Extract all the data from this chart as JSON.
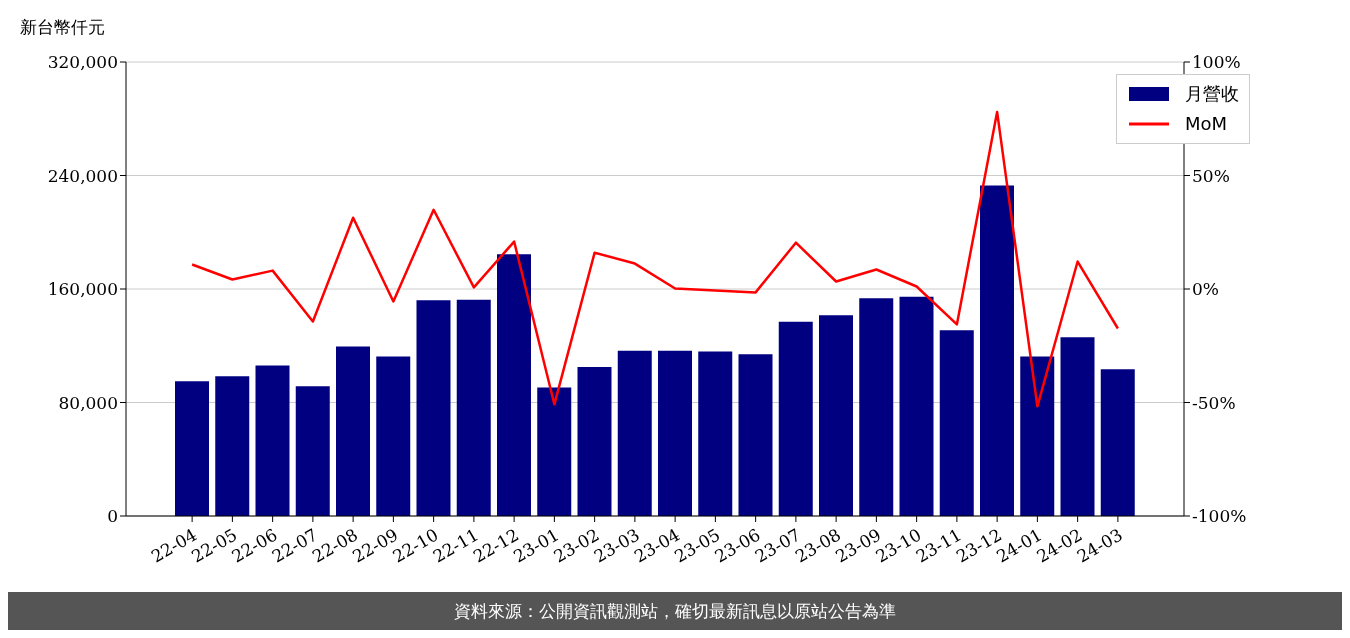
{
  "chart_data": {
    "type": "bar",
    "ylabel": "新台幣仟元",
    "categories": [
      "22-04",
      "22-05",
      "22-06",
      "22-07",
      "22-08",
      "22-09",
      "22-10",
      "22-11",
      "22-12",
      "23-01",
      "23-02",
      "23-03",
      "23-04",
      "23-05",
      "23-06",
      "23-07",
      "23-08",
      "23-09",
      "23-10",
      "23-11",
      "23-12",
      "24-01",
      "24-02",
      "24-03"
    ],
    "series": [
      {
        "name": "月營收",
        "color": "#000080",
        "values": [
          95000,
          98500,
          106000,
          91500,
          119500,
          112500,
          152000,
          152500,
          184500,
          90500,
          105000,
          116500,
          116500,
          116000,
          114000,
          137000,
          141500,
          153500,
          154500,
          131000,
          233000,
          112500,
          126000,
          103500
        ]
      },
      {
        "name": "MoM",
        "type": "line",
        "axis": "y2",
        "color": "#ff0000",
        "values": [
          10.8,
          4.2,
          8.1,
          -14.3,
          31.4,
          -5.5,
          34.9,
          0.7,
          20.9,
          -50.8,
          16,
          11.2,
          0.2,
          -0.7,
          -1.5,
          20.4,
          3.3,
          8.6,
          1.1,
          -15.6,
          78,
          -51.7,
          12.1,
          -17.4
        ]
      }
    ],
    "ylim": [
      0,
      320000
    ],
    "yticks": [
      {
        "value": 0,
        "label": "0"
      },
      {
        "value": 80000,
        "label": "80,000"
      },
      {
        "value": 160000,
        "label": "160,000"
      },
      {
        "value": 240000,
        "label": "240,000"
      },
      {
        "value": 320000,
        "label": "320,000"
      }
    ],
    "y2lim": [
      -100,
      100
    ],
    "y2ticks": [
      {
        "value": -100,
        "label": "-100%"
      },
      {
        "value": -50,
        "label": "-50%"
      },
      {
        "value": 0,
        "label": "0%"
      },
      {
        "value": 50,
        "label": "50%"
      },
      {
        "value": 100,
        "label": "100%"
      }
    ],
    "grid": "y",
    "legend": "top right",
    "marker": "none",
    "annotations": [
      "資料來源：公開資訊觀測站，確切最新訊息以原站公告為準"
    ]
  }
}
